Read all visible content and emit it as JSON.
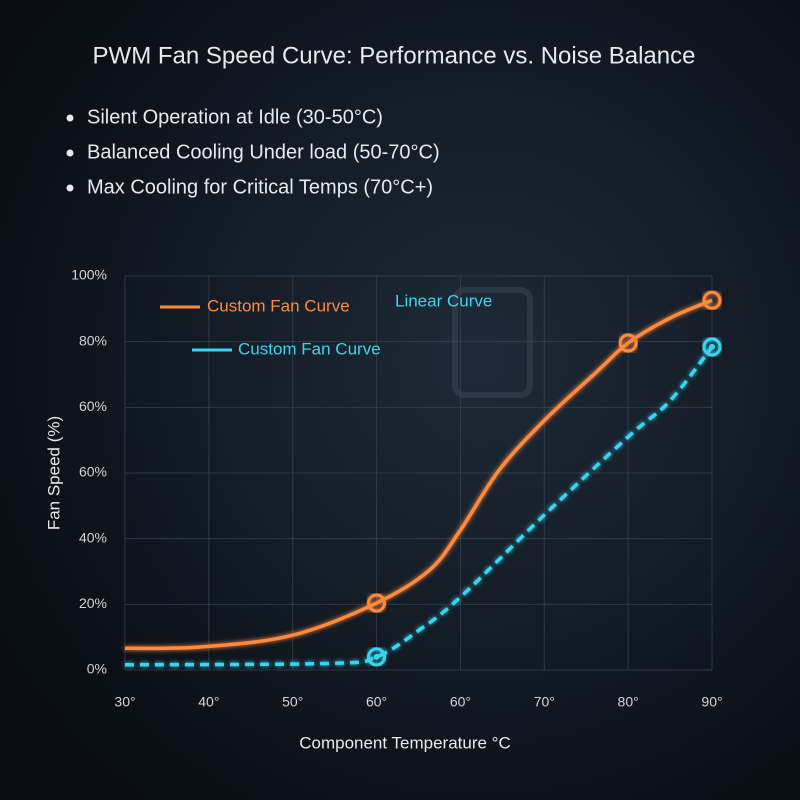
{
  "chart_data": {
    "type": "line",
    "title": "PWM Fan Speed Curve: Performance vs. Noise Balance",
    "bullets": [
      "Silent Operation at Idle (30-50°C)",
      "Balanced Cooling Under load (50-70°C)",
      "Max Cooling for Critical Temps (70°C+)"
    ],
    "xlabel": "Component Temperature °C",
    "ylabel": "Fan Speed (%)",
    "xlim": [
      0,
      7
    ],
    "ylim": [
      0,
      6
    ],
    "xticks": [
      {
        "value": 0,
        "label": "30°"
      },
      {
        "value": 1,
        "label": "40°"
      },
      {
        "value": 2,
        "label": "50°"
      },
      {
        "value": 3,
        "label": "60°"
      },
      {
        "value": 4,
        "label": "60°"
      },
      {
        "value": 5,
        "label": "70°"
      },
      {
        "value": 6,
        "label": "80°"
      },
      {
        "value": 7,
        "label": "90°"
      }
    ],
    "yticks": [
      {
        "value": 0,
        "label": "0%"
      },
      {
        "value": 1,
        "label": "20%"
      },
      {
        "value": 2,
        "label": "40%"
      },
      {
        "value": 3,
        "label": "60%"
      },
      {
        "value": 4,
        "label": "60%"
      },
      {
        "value": 5,
        "label": "80%"
      },
      {
        "value": 6,
        "label": "100%"
      }
    ],
    "grid": true,
    "series": [
      {
        "name": "Custom Fan Curve",
        "color": "#ff8a3d",
        "style": "solid",
        "x": [
          0,
          0.9,
          2,
          3,
          3.63,
          4,
          4.46,
          5,
          5.65,
          6,
          6.5,
          7
        ],
        "values": [
          0.33,
          0.35,
          0.53,
          1.02,
          1.52,
          2.13,
          3.04,
          3.8,
          4.57,
          4.98,
          5.36,
          5.63
        ],
        "marker_x": [
          3,
          6,
          7
        ],
        "marker_values": [
          1.02,
          4.98,
          5.63
        ]
      },
      {
        "name": "Custom Fan Curve",
        "color": "#38d6f0",
        "style": "dashed",
        "x": [
          0,
          2.44,
          3,
          3.51,
          4,
          5,
          6,
          6.5,
          7
        ],
        "values": [
          0.08,
          0.1,
          0.2,
          0.61,
          1.11,
          2.36,
          3.55,
          4.1,
          4.92
        ],
        "marker_x": [
          3,
          7
        ],
        "marker_values": [
          0.2,
          4.92
        ]
      }
    ],
    "annotations": [
      "Linear Curve"
    ]
  }
}
